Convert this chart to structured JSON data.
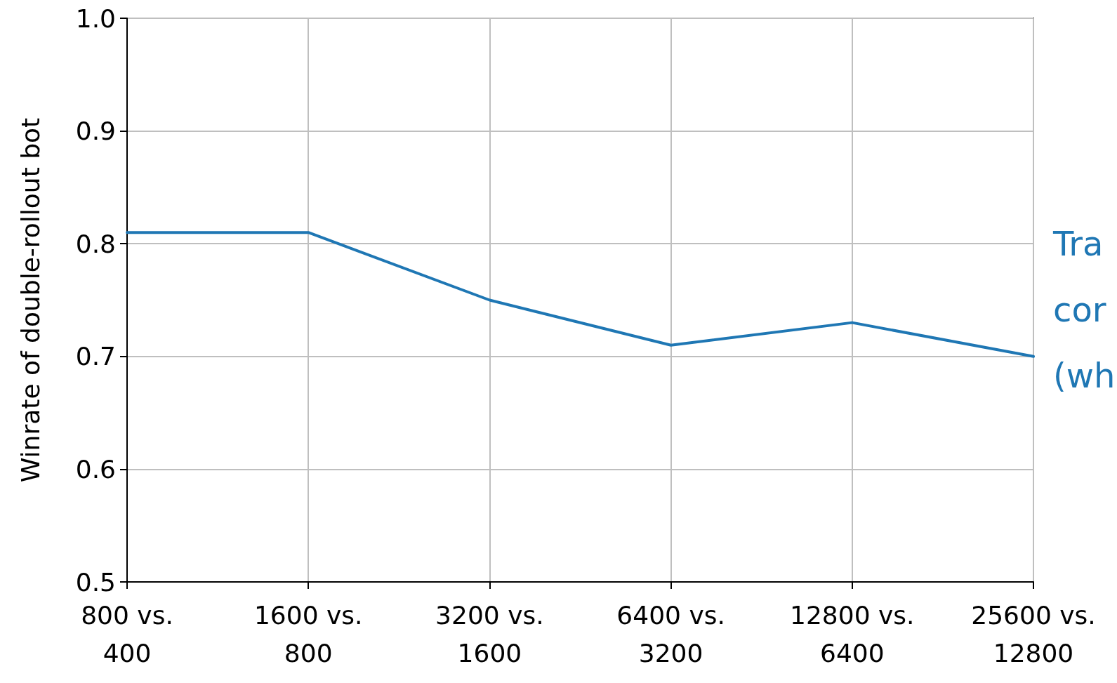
{
  "chart_data": {
    "type": "line",
    "ylabel": "Winrate of double-rollout bot",
    "categories": [
      "800 vs.\n400",
      "1600 vs.\n800",
      "3200 vs.\n1600",
      "6400 vs.\n3200",
      "12800 vs.\n6400",
      "25600 vs.\n12800"
    ],
    "series": [
      {
        "color": "#1f77b4",
        "values": [
          0.81,
          0.81,
          0.75,
          0.71,
          0.73,
          0.7
        ]
      }
    ],
    "ylim": [
      0.5,
      1.0
    ],
    "yticks": [
      0.5,
      0.6,
      0.7,
      0.8,
      0.9,
      {
        "value": 1,
        "label": "1.0"
      }
    ],
    "grid": true,
    "marker": "none",
    "line_style": "solid",
    "annotations": [
      "Tra\ncor\n(wh"
    ]
  }
}
